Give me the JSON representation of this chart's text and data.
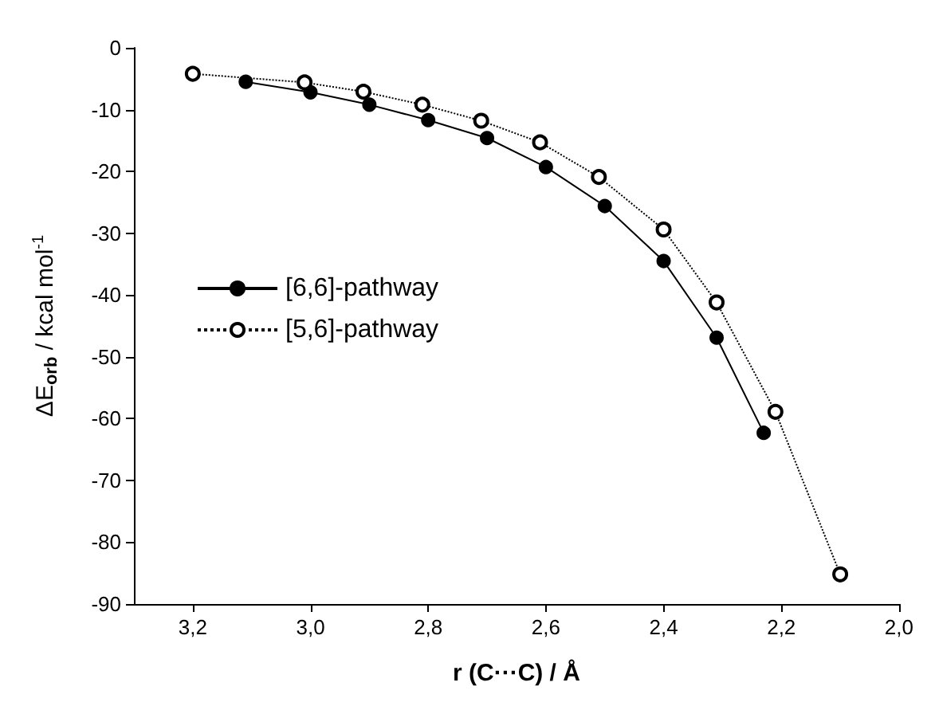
{
  "chart_data": {
    "type": "line",
    "xlabel": "r (C···C) / Å",
    "ylabel": "ΔE$_{orb}$ / kcal mol$^{-1}$",
    "xlim": [
      3.3,
      2.0
    ],
    "xticks": [
      {
        "value": 3.2,
        "label": "3,2"
      },
      {
        "value": 3.0,
        "label": "3,0"
      },
      {
        "value": 2.8,
        "label": "2,8"
      },
      {
        "value": 2.6,
        "label": "2,6"
      },
      {
        "value": 2.4,
        "label": "2,4"
      },
      {
        "value": 2.2,
        "label": "2,2"
      },
      {
        "value": 2.0,
        "label": "2,0"
      }
    ],
    "ylim": [
      -90,
      0
    ],
    "yticks": [
      -90,
      -80,
      -70,
      -60,
      -50,
      -40,
      -30,
      -20,
      -10,
      0
    ],
    "grid": false,
    "legend": "center left",
    "series": [
      {
        "name": "[6,6]-pathway",
        "color": "#000000",
        "marker": "circle",
        "line_style": "solid",
        "x": [
          3.11,
          3.0,
          2.9,
          2.8,
          2.7,
          2.6,
          2.5,
          2.4,
          2.31,
          2.23
        ],
        "values": [
          -5.5,
          -7.2,
          -9.2,
          -11.7,
          -14.6,
          -19.3,
          -25.6,
          -34.5,
          -46.9,
          -62.3
        ]
      },
      {
        "name": "[5,6]-pathway",
        "color": "#000000",
        "marker": "open circle",
        "line_style": "dotted",
        "x": [
          3.2,
          3.01,
          2.91,
          2.81,
          2.71,
          2.61,
          2.51,
          2.4,
          2.31,
          2.21,
          2.1
        ],
        "values": [
          -4.2,
          -5.6,
          -7.1,
          -9.2,
          -11.8,
          -15.3,
          -20.9,
          -29.4,
          -41.2,
          -58.9,
          -85.2
        ]
      }
    ]
  }
}
